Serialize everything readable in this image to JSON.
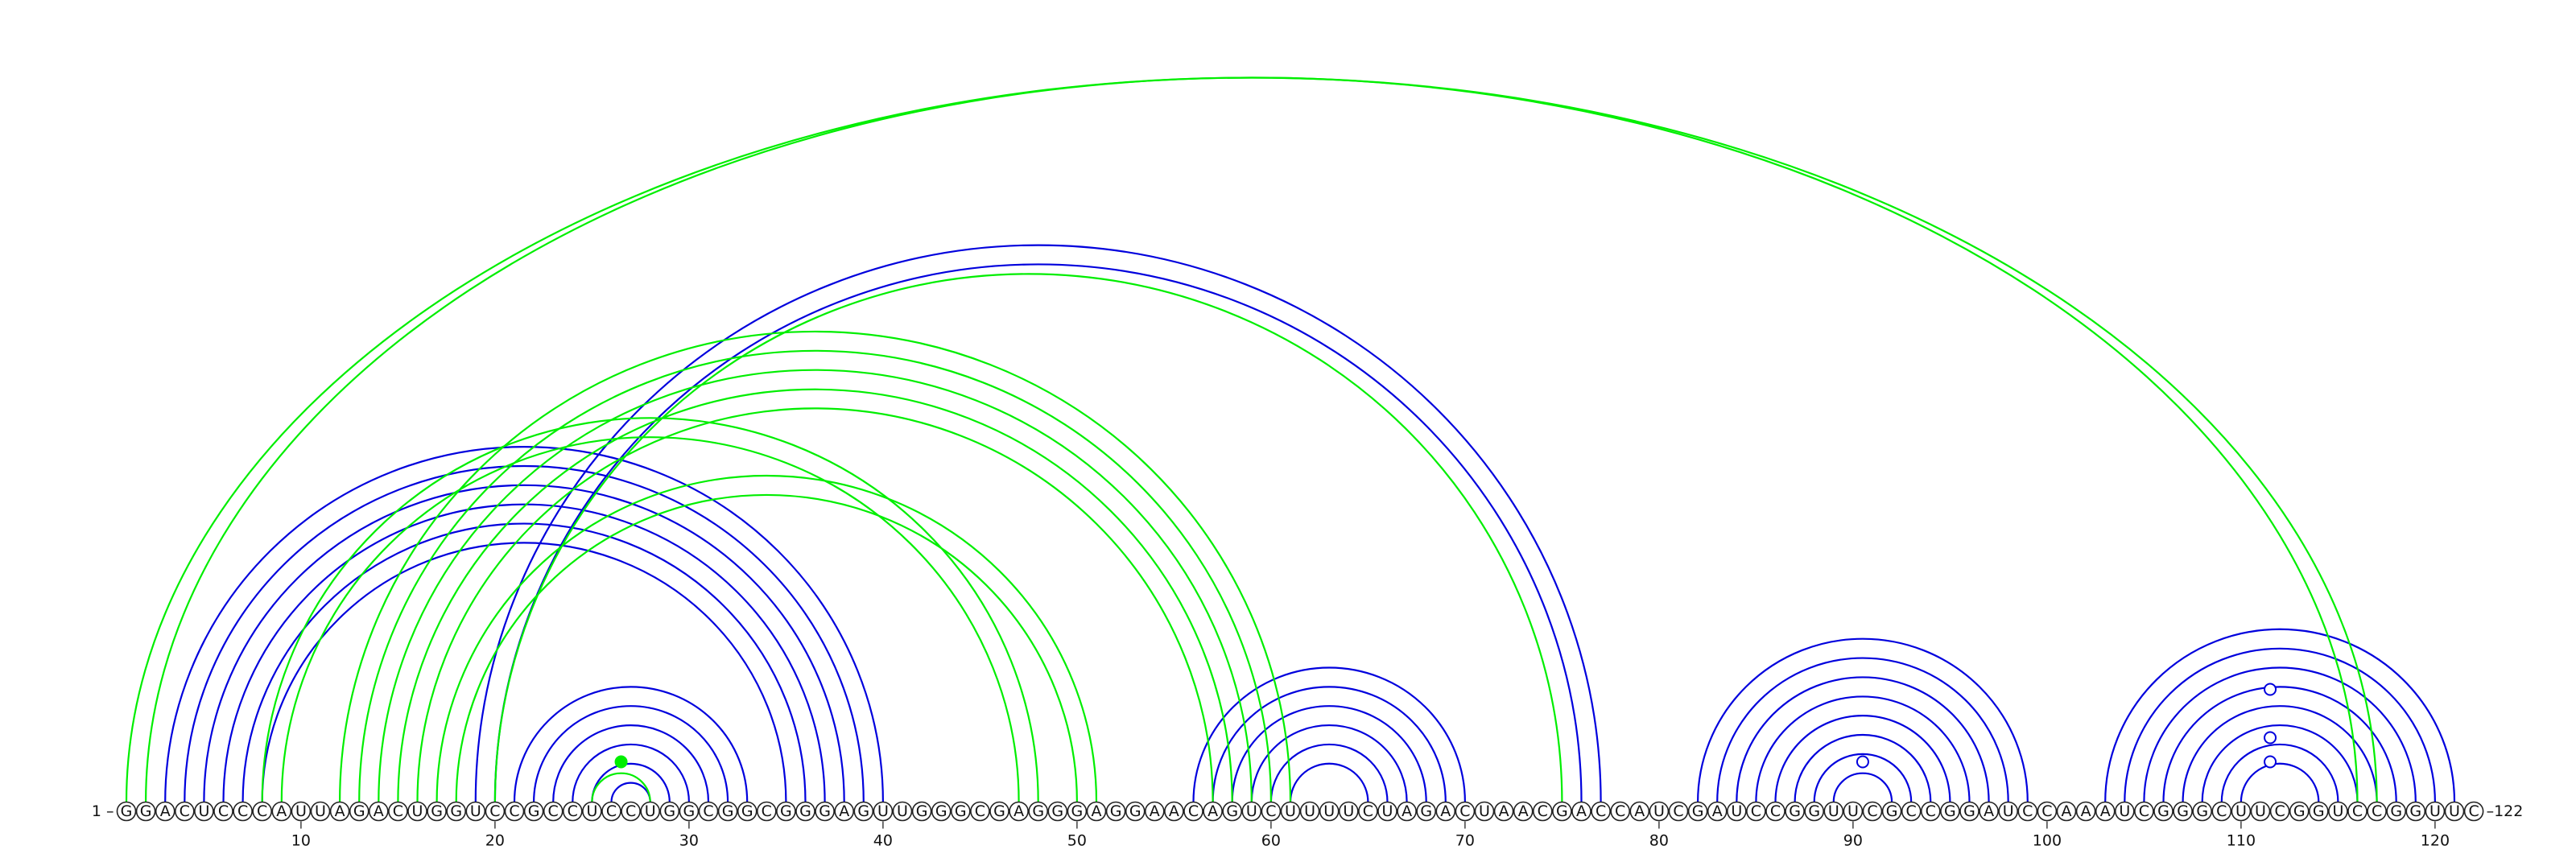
{
  "sequence": "GGACUCCCAUUAGACUGGUCCGCCUCCUGGCGGCGGGAGUUGGGCGAGGGAGGAACAGUCUUUUCUAGACUAACGACCAUCGAUCCGGUUCGCCGGAUCCAAAUCGGGCUUCGGUCCGGUUC",
  "start_label": "1 –",
  "end_label": "–122",
  "ticks": [
    "10",
    "20",
    "30",
    "40",
    "50",
    "60",
    "70",
    "80",
    "90",
    "100",
    "110",
    "120"
  ],
  "tick_positions": [
    10,
    20,
    30,
    40,
    50,
    60,
    70,
    80,
    90,
    100,
    110,
    120
  ],
  "colors": {
    "blue": "#0000dd",
    "green": "#00ee00",
    "outline": "#222222"
  },
  "arcs": {
    "blue": [
      [
        3,
        40
      ],
      [
        4,
        39
      ],
      [
        5,
        38
      ],
      [
        6,
        37
      ],
      [
        7,
        36
      ],
      [
        8,
        35
      ],
      [
        19,
        77
      ],
      [
        20,
        76
      ],
      [
        21,
        33
      ],
      [
        22,
        32
      ],
      [
        23,
        31
      ],
      [
        24,
        30
      ],
      [
        25,
        29
      ],
      [
        26,
        28
      ],
      [
        56,
        70
      ],
      [
        57,
        69
      ],
      [
        58,
        68
      ],
      [
        59,
        67
      ],
      [
        60,
        66
      ],
      [
        61,
        65
      ],
      [
        82,
        99
      ],
      [
        83,
        98
      ],
      [
        84,
        97
      ],
      [
        85,
        96
      ],
      [
        86,
        95
      ],
      [
        87,
        94
      ],
      [
        88,
        93
      ],
      [
        89,
        92
      ],
      [
        103,
        121
      ],
      [
        104,
        120
      ],
      [
        105,
        119
      ],
      [
        106,
        118
      ],
      [
        107,
        117
      ],
      [
        108,
        116
      ],
      [
        109,
        115
      ],
      [
        110,
        114
      ]
    ],
    "green": [
      [
        1,
        117
      ],
      [
        2,
        116
      ],
      [
        8,
        48
      ],
      [
        9,
        47
      ],
      [
        12,
        61
      ],
      [
        13,
        60
      ],
      [
        14,
        59
      ],
      [
        15,
        58
      ],
      [
        16,
        57
      ],
      [
        17,
        51
      ],
      [
        18,
        50
      ],
      [
        20,
        75
      ],
      [
        25,
        28
      ]
    ]
  },
  "markers": [
    {
      "position": 26.5,
      "color": "green",
      "filled": true,
      "level": "inner"
    },
    {
      "position": 90.5,
      "color": "blue",
      "filled": false,
      "level": "inner"
    },
    {
      "position": 111.5,
      "color": "blue",
      "filled": false,
      "level": "inner"
    },
    {
      "position": 111.5,
      "color": "blue",
      "filled": false,
      "level": "middle"
    },
    {
      "position": 111.5,
      "color": "blue",
      "filled": false,
      "level": "outer"
    }
  ]
}
